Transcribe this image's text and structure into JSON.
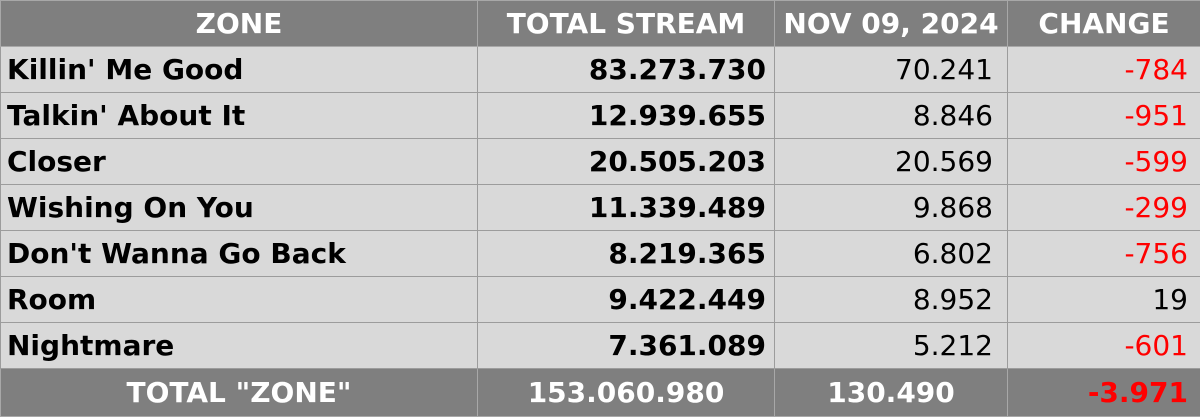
{
  "headers": {
    "zone": "ZONE",
    "total_stream": "TOTAL STREAM",
    "date": "NOV 09, 2024",
    "change": "CHANGE"
  },
  "rows": [
    {
      "name": "Killin' Me Good",
      "total": "83.273.730",
      "daily": "70.241",
      "change": "-784"
    },
    {
      "name": "Talkin' About It",
      "total": "12.939.655",
      "daily": "8.846",
      "change": "-951"
    },
    {
      "name": "Closer",
      "total": "20.505.203",
      "daily": "20.569",
      "change": "-599"
    },
    {
      "name": "Wishing On You",
      "total": "11.339.489",
      "daily": "9.868",
      "change": "-299"
    },
    {
      "name": "Don't Wanna Go Back",
      "total": "8.219.365",
      "daily": "6.802",
      "change": "-756"
    },
    {
      "name": "Room",
      "total": "9.422.449",
      "daily": "8.952",
      "change": "19"
    },
    {
      "name": "Nightmare",
      "total": "7.361.089",
      "daily": "5.212",
      "change": "-601"
    }
  ],
  "footer": {
    "label": "TOTAL \"ZONE\"",
    "total": "153.060.980",
    "daily": "130.490",
    "change": "-3.971"
  },
  "colors": {
    "header_bg": "#7f7f7f",
    "row_bg": "#d9d9d9",
    "negative": "#ff0000"
  }
}
